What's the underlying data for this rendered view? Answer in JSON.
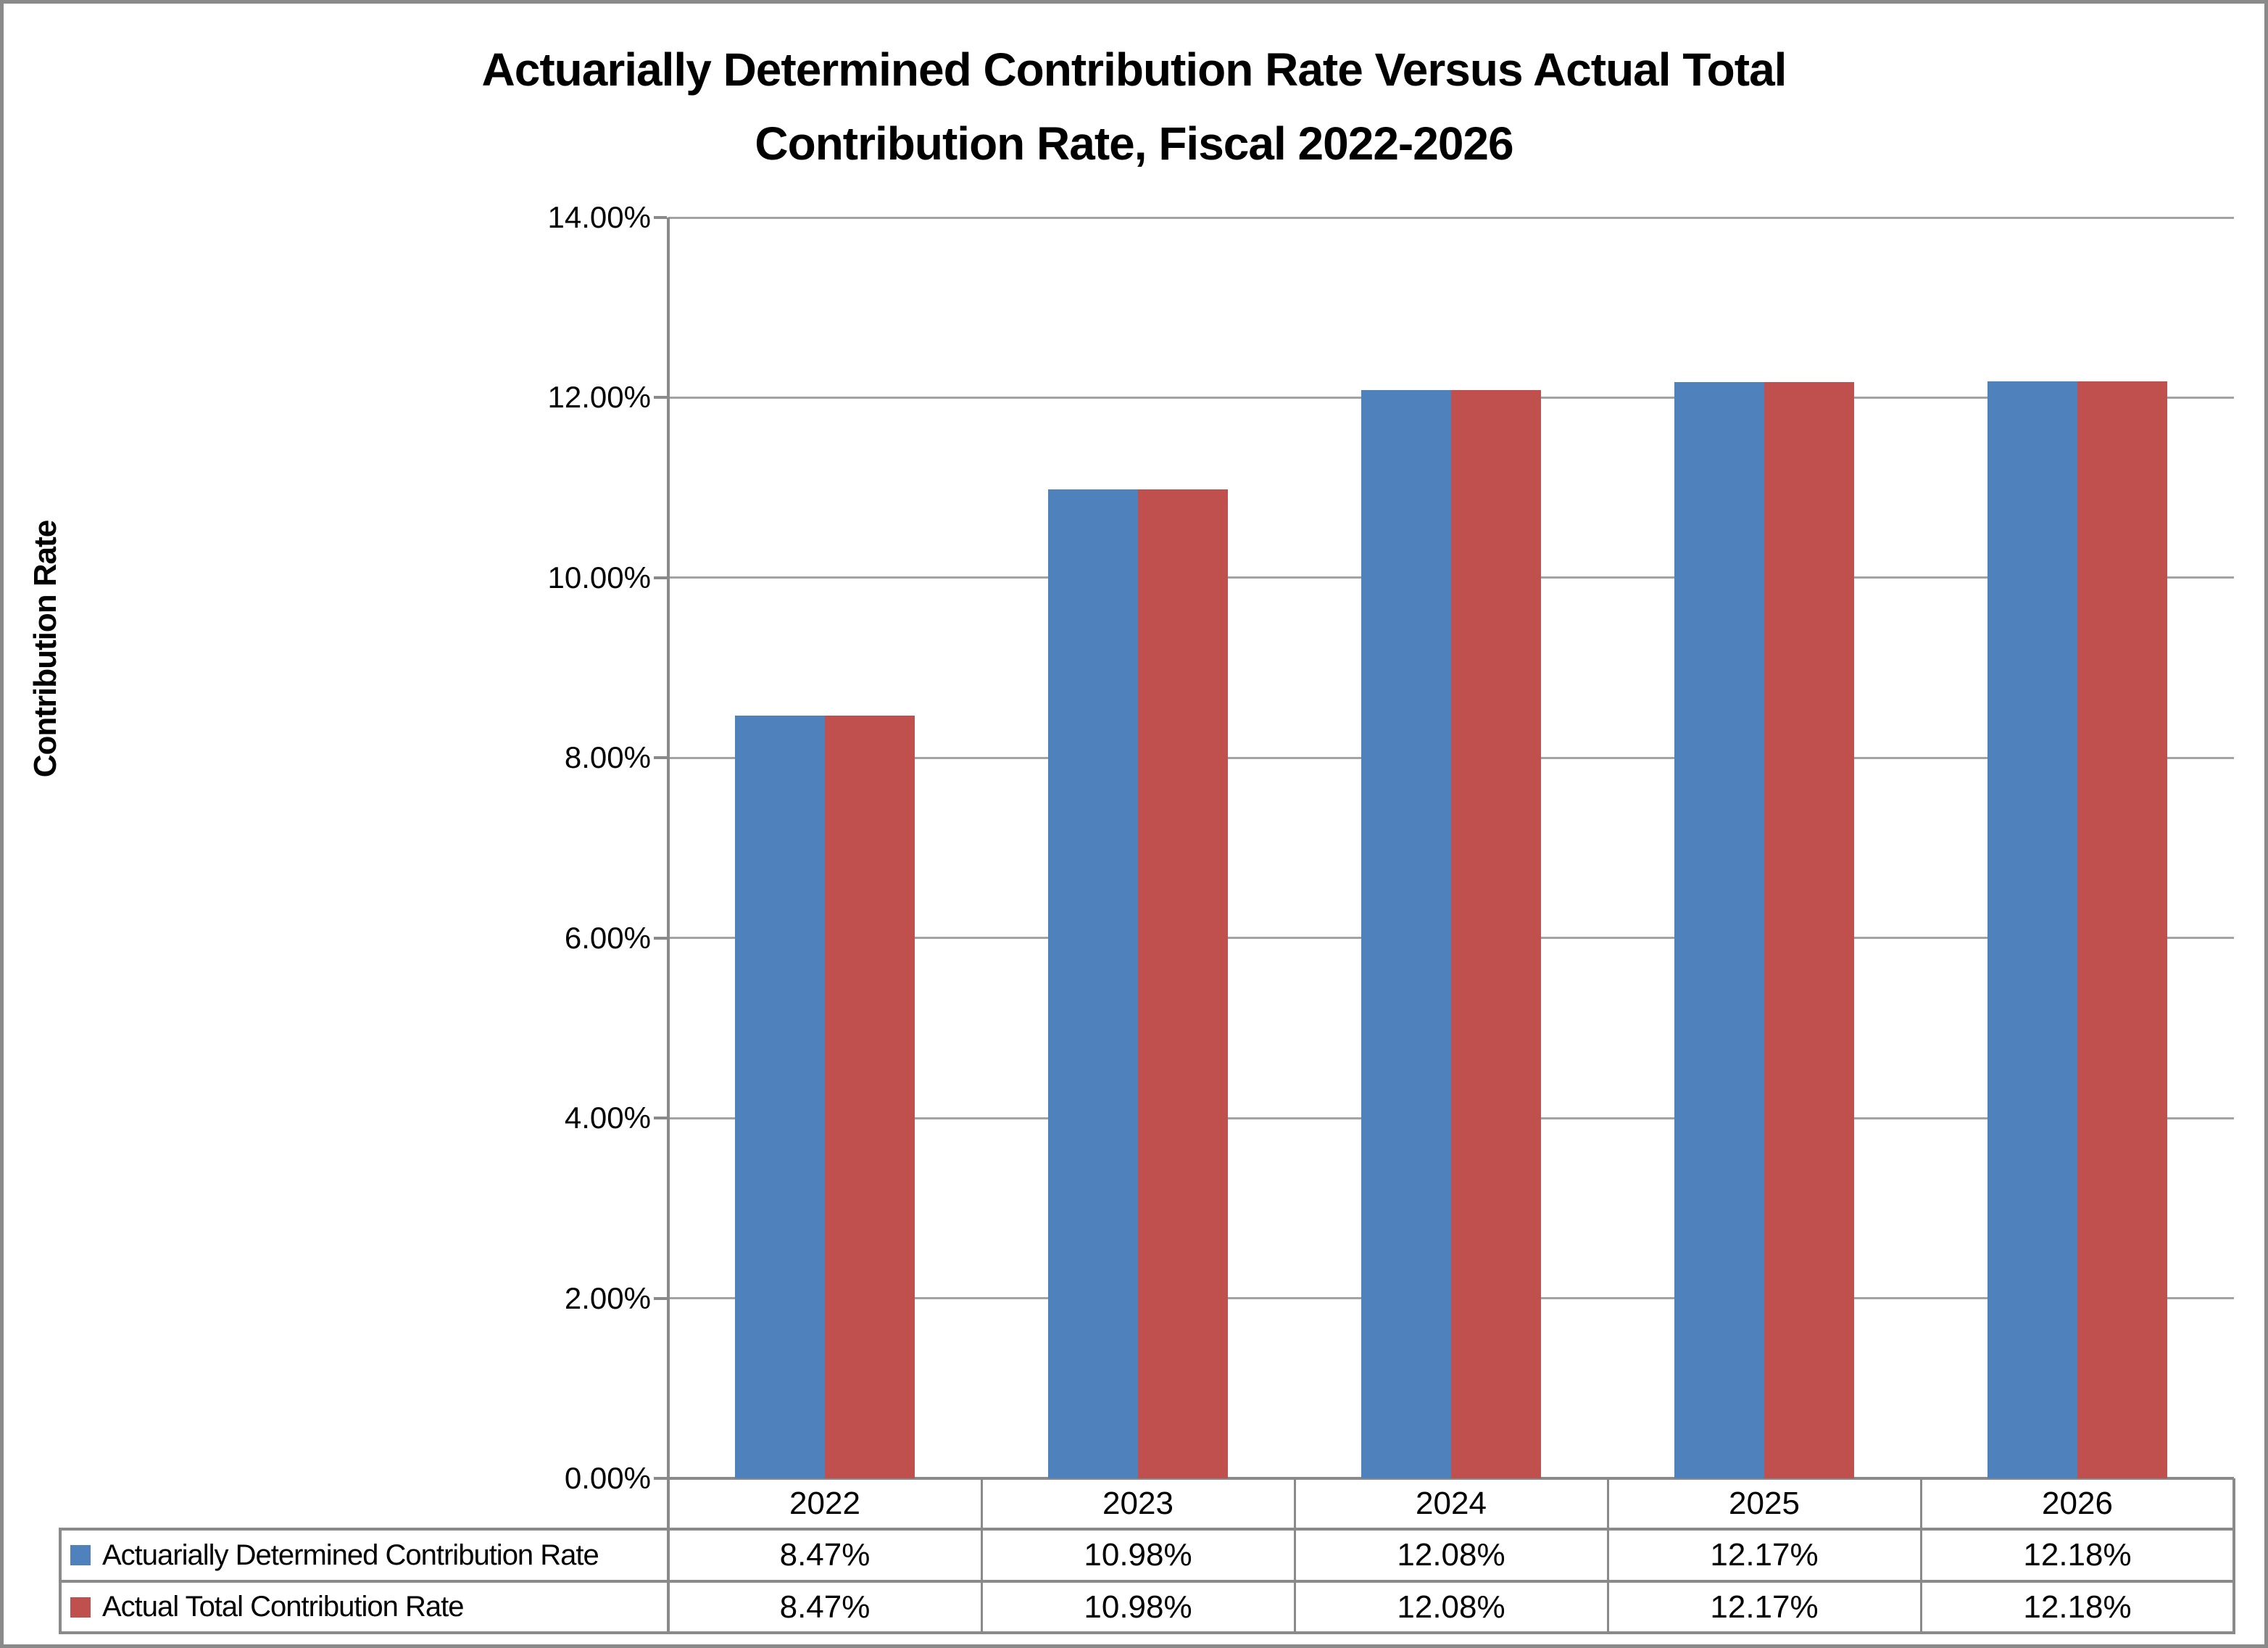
{
  "title": "Actuarially Determined Contribution Rate Versus Actual Total Contribution Rate, Fiscal 2022-2026",
  "title_lines": [
    "Actuarially Determined Contribution Rate Versus Actual Total",
    "Contribution Rate, Fiscal 2022-2026"
  ],
  "y_axis": {
    "label": "Contribution Rate",
    "ticks": [
      "14.00%",
      "12.00%",
      "10.00%",
      "8.00%",
      "6.00%",
      "4.00%",
      "2.00%",
      "0.00%"
    ]
  },
  "chart_data": {
    "type": "bar",
    "title": "Actuarially Determined Contribution Rate Versus Actual Total Contribution Rate, Fiscal 2022-2026",
    "xlabel": "",
    "ylabel": "Contribution Rate",
    "ylim": [
      0,
      14
    ],
    "y_tick_step": 2,
    "y_tick_format": "0.00%",
    "grid": true,
    "legend_position": "data-table-below-chart",
    "categories": [
      "2022",
      "2023",
      "2024",
      "2025",
      "2026"
    ],
    "series": [
      {
        "key": "actuarially-determined",
        "name": "Actuarially Determined Contribution Rate",
        "color": "#4F81BD",
        "values": [
          8.47,
          10.98,
          12.08,
          12.17,
          12.18
        ],
        "values_display": [
          "8.47%",
          "10.98%",
          "12.08%",
          "12.17%",
          "12.18%"
        ]
      },
      {
        "key": "actual-total",
        "name": "Actual Total Contribution Rate",
        "color": "#C0504D",
        "values": [
          8.47,
          10.98,
          12.08,
          12.17,
          12.18
        ],
        "values_display": [
          "8.47%",
          "10.98%",
          "12.08%",
          "12.17%",
          "12.18%"
        ]
      }
    ]
  },
  "colors": {
    "series_1": "#4F81BD",
    "series_2": "#C0504D",
    "gridline": "#A3A3A3",
    "axis_and_table_border": "#8A8A8A",
    "outer_frame": "#8A8A8A",
    "background": "#FFFFFF",
    "text": "#000000"
  }
}
